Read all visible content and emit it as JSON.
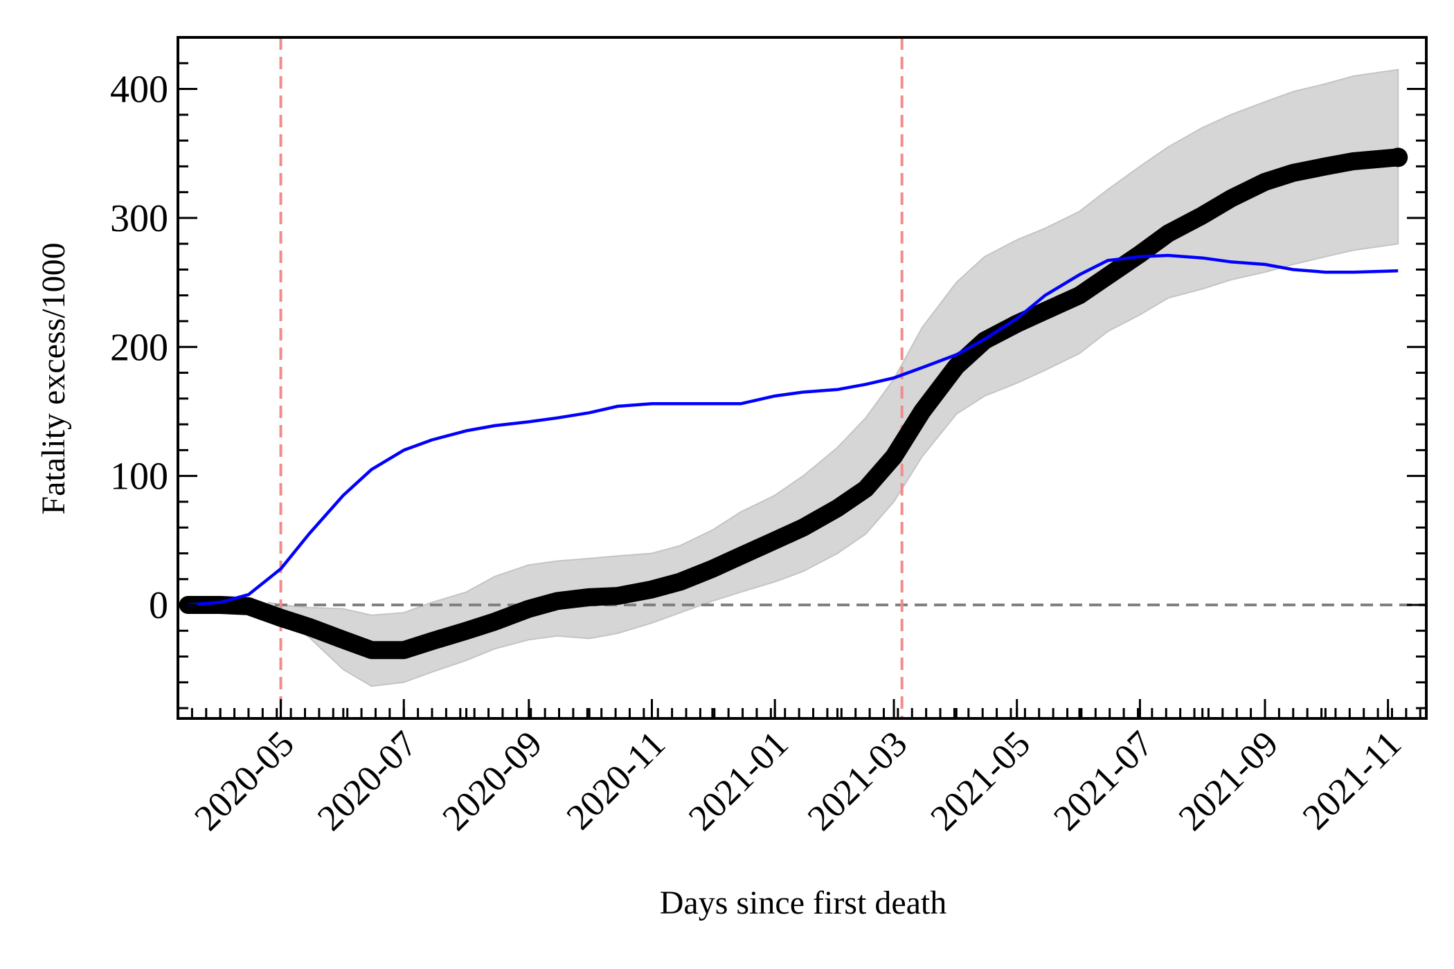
{
  "chart_data": {
    "type": "line",
    "title": "",
    "xlabel": "Days since first death",
    "ylabel": "Fatality excess/1000",
    "x_range": [
      "2020-03-11",
      "2021-11-20"
    ],
    "ylim": [
      -88,
      440
    ],
    "y_ticks": [
      0,
      100,
      200,
      300,
      400
    ],
    "y_minor_step": 20,
    "x_ticks": [
      "2020-05",
      "2020-07",
      "2020-09",
      "2020-11",
      "2021-01",
      "2021-03",
      "2021-05",
      "2021-07",
      "2021-09",
      "2021-11"
    ],
    "x_tick_dates": [
      "2020-05-01",
      "2020-07-01",
      "2020-09-01",
      "2020-11-01",
      "2021-01-01",
      "2021-03-01",
      "2021-05-01",
      "2021-07-01",
      "2021-09-01",
      "2021-11-01"
    ],
    "grid": false,
    "legend": "none",
    "reference_lines": {
      "horizontal_zero": {
        "y": 0,
        "color": "#808080",
        "style": "dashed"
      },
      "vertical": [
        {
          "x": "2020-05-01",
          "color": "#f28b8b",
          "style": "dashed"
        },
        {
          "x": "2021-03-05",
          "color": "#f28b8b",
          "style": "dashed"
        }
      ]
    },
    "series": [
      {
        "color": "#0000ff",
        "style": "line",
        "points": [
          [
            "2020-03-16",
            0
          ],
          [
            "2020-04-01",
            2
          ],
          [
            "2020-04-15",
            8
          ],
          [
            "2020-05-01",
            28
          ],
          [
            "2020-05-15",
            55
          ],
          [
            "2020-06-01",
            85
          ],
          [
            "2020-06-15",
            105
          ],
          [
            "2020-07-01",
            120
          ],
          [
            "2020-07-15",
            128
          ],
          [
            "2020-08-01",
            135
          ],
          [
            "2020-08-15",
            139
          ],
          [
            "2020-09-01",
            142
          ],
          [
            "2020-09-15",
            145
          ],
          [
            "2020-10-01",
            149
          ],
          [
            "2020-10-15",
            154
          ],
          [
            "2020-11-01",
            156
          ],
          [
            "2020-11-15",
            156
          ],
          [
            "2020-12-01",
            156
          ],
          [
            "2020-12-15",
            156
          ],
          [
            "2021-01-01",
            162
          ],
          [
            "2021-01-15",
            165
          ],
          [
            "2021-02-01",
            167
          ],
          [
            "2021-02-15",
            171
          ],
          [
            "2021-03-01",
            176
          ],
          [
            "2021-03-15",
            184
          ],
          [
            "2021-04-01",
            194
          ],
          [
            "2021-04-15",
            206
          ],
          [
            "2021-05-01",
            222
          ],
          [
            "2021-05-15",
            240
          ],
          [
            "2021-06-01",
            256
          ],
          [
            "2021-06-15",
            267
          ],
          [
            "2021-07-01",
            270
          ],
          [
            "2021-07-15",
            271
          ],
          [
            "2021-08-01",
            269
          ],
          [
            "2021-08-15",
            266
          ],
          [
            "2021-09-01",
            264
          ],
          [
            "2021-09-15",
            260
          ],
          [
            "2021-10-01",
            258
          ],
          [
            "2021-10-15",
            258
          ],
          [
            "2021-11-06",
            259
          ]
        ]
      },
      {
        "color": "#000000",
        "style": "thick-markers",
        "points": [
          [
            "2020-03-16",
            0
          ],
          [
            "2020-04-01",
            0
          ],
          [
            "2020-04-15",
            -1
          ],
          [
            "2020-05-01",
            -10
          ],
          [
            "2020-05-15",
            -17
          ],
          [
            "2020-06-01",
            -27
          ],
          [
            "2020-06-15",
            -35
          ],
          [
            "2020-07-01",
            -35
          ],
          [
            "2020-07-15",
            -28
          ],
          [
            "2020-08-01",
            -20
          ],
          [
            "2020-08-15",
            -13
          ],
          [
            "2020-09-01",
            -3
          ],
          [
            "2020-09-15",
            3
          ],
          [
            "2020-10-01",
            6
          ],
          [
            "2020-10-15",
            7
          ],
          [
            "2020-11-01",
            12
          ],
          [
            "2020-11-15",
            18
          ],
          [
            "2020-12-01",
            28
          ],
          [
            "2020-12-15",
            38
          ],
          [
            "2021-01-01",
            50
          ],
          [
            "2021-01-15",
            60
          ],
          [
            "2021-02-01",
            75
          ],
          [
            "2021-02-15",
            90
          ],
          [
            "2021-03-01",
            115
          ],
          [
            "2021-03-15",
            150
          ],
          [
            "2021-04-01",
            185
          ],
          [
            "2021-04-15",
            205
          ],
          [
            "2021-05-01",
            218
          ],
          [
            "2021-05-15",
            228
          ],
          [
            "2021-06-01",
            240
          ],
          [
            "2021-06-15",
            255
          ],
          [
            "2021-07-01",
            272
          ],
          [
            "2021-07-15",
            288
          ],
          [
            "2021-08-01",
            302
          ],
          [
            "2021-08-15",
            315
          ],
          [
            "2021-09-01",
            328
          ],
          [
            "2021-09-15",
            335
          ],
          [
            "2021-10-01",
            340
          ],
          [
            "2021-10-15",
            344
          ],
          [
            "2021-11-06",
            347
          ]
        ]
      }
    ],
    "confidence_band": {
      "color": "#d6d6d6",
      "lower": [
        [
          "2020-04-25",
          -2
        ],
        [
          "2020-05-01",
          -10
        ],
        [
          "2020-05-15",
          -25
        ],
        [
          "2020-06-01",
          -50
        ],
        [
          "2020-06-15",
          -63
        ],
        [
          "2020-07-01",
          -60
        ],
        [
          "2020-07-15",
          -52
        ],
        [
          "2020-08-01",
          -43
        ],
        [
          "2020-08-15",
          -34
        ],
        [
          "2020-09-01",
          -27
        ],
        [
          "2020-09-15",
          -24
        ],
        [
          "2020-10-01",
          -26
        ],
        [
          "2020-10-15",
          -22
        ],
        [
          "2020-11-01",
          -14
        ],
        [
          "2020-11-15",
          -6
        ],
        [
          "2020-12-01",
          3
        ],
        [
          "2020-12-15",
          10
        ],
        [
          "2021-01-01",
          18
        ],
        [
          "2021-01-15",
          26
        ],
        [
          "2021-02-01",
          40
        ],
        [
          "2021-02-15",
          55
        ],
        [
          "2021-03-01",
          80
        ],
        [
          "2021-03-15",
          115
        ],
        [
          "2021-04-01",
          148
        ],
        [
          "2021-04-15",
          162
        ],
        [
          "2021-05-01",
          172
        ],
        [
          "2021-05-15",
          182
        ],
        [
          "2021-06-01",
          195
        ],
        [
          "2021-06-15",
          212
        ],
        [
          "2021-07-01",
          225
        ],
        [
          "2021-07-15",
          238
        ],
        [
          "2021-08-01",
          245
        ],
        [
          "2021-08-15",
          252
        ],
        [
          "2021-09-01",
          258
        ],
        [
          "2021-09-15",
          264
        ],
        [
          "2021-10-01",
          270
        ],
        [
          "2021-10-15",
          275
        ],
        [
          "2021-11-06",
          280
        ]
      ],
      "upper": [
        [
          "2020-04-25",
          2
        ],
        [
          "2020-05-01",
          0
        ],
        [
          "2020-05-15",
          -2
        ],
        [
          "2020-06-01",
          -3
        ],
        [
          "2020-06-15",
          -8
        ],
        [
          "2020-07-01",
          -6
        ],
        [
          "2020-07-15",
          2
        ],
        [
          "2020-08-01",
          10
        ],
        [
          "2020-08-15",
          22
        ],
        [
          "2020-09-01",
          31
        ],
        [
          "2020-09-15",
          34
        ],
        [
          "2020-10-01",
          36
        ],
        [
          "2020-10-15",
          38
        ],
        [
          "2020-11-01",
          40
        ],
        [
          "2020-11-15",
          46
        ],
        [
          "2020-12-01",
          58
        ],
        [
          "2020-12-15",
          72
        ],
        [
          "2021-01-01",
          85
        ],
        [
          "2021-01-15",
          100
        ],
        [
          "2021-02-01",
          122
        ],
        [
          "2021-02-15",
          145
        ],
        [
          "2021-03-01",
          175
        ],
        [
          "2021-03-15",
          215
        ],
        [
          "2021-04-01",
          250
        ],
        [
          "2021-04-15",
          270
        ],
        [
          "2021-05-01",
          283
        ],
        [
          "2021-05-15",
          292
        ],
        [
          "2021-06-01",
          305
        ],
        [
          "2021-06-15",
          322
        ],
        [
          "2021-07-01",
          340
        ],
        [
          "2021-07-15",
          355
        ],
        [
          "2021-08-01",
          370
        ],
        [
          "2021-08-15",
          380
        ],
        [
          "2021-09-01",
          390
        ],
        [
          "2021-09-15",
          398
        ],
        [
          "2021-10-01",
          404
        ],
        [
          "2021-10-15",
          410
        ],
        [
          "2021-11-06",
          415
        ]
      ]
    }
  }
}
